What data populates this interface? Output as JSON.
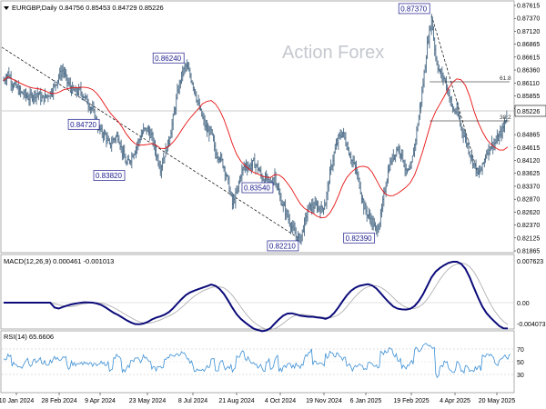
{
  "watermark": "Action Forex",
  "chart_data": [
    {
      "type": "line",
      "title": "EURGBP,Daily",
      "ohlc": "0.84756 0.85453 0.84729 0.85226",
      "style": "OHLC bars with moving average",
      "last_price": "0.85226",
      "colors": {
        "bars": "#4a6a86",
        "moving_average": "#e81010",
        "trendline": "#000000"
      },
      "x_dates": [
        "10 Jan 2024",
        "28 Feb 2024",
        "9 Apr 2024",
        "23 May 2024",
        "8 Jul 2024",
        "21 Aug 2024",
        "4 Oct 2024",
        "19 Nov 2024",
        "6 Jan 2025",
        "19 Feb 2025",
        "4 Apr 2025",
        "20 May 2025"
      ],
      "ylim": [
        0.8198,
        0.8766
      ],
      "y_ticks": [
        "0.87615",
        "0.87370",
        "0.87120",
        "0.86865",
        "0.86615",
        "0.86360",
        "0.86110",
        "0.85855",
        "0.85605",
        "0.85226",
        "0.84865",
        "0.84615",
        "0.84120",
        "0.83625",
        "0.83370",
        "0.82870",
        "0.82620",
        "0.82370",
        "0.82125",
        "0.81865"
      ],
      "annotations": [
        {
          "text": "0.82210",
          "value": 0.8221
        },
        {
          "text": "0.83820",
          "value": 0.8382
        },
        {
          "text": "0.86240",
          "value": 0.8624
        },
        {
          "text": "0.84720",
          "value": 0.8472
        },
        {
          "text": "0.82390",
          "value": 0.8239
        },
        {
          "text": "0.87370",
          "value": 0.8737
        },
        {
          "text": "0.83540",
          "value": 0.8354
        }
      ],
      "fibonacci": [
        {
          "text": "61.8"
        },
        {
          "text": "38.2"
        }
      ],
      "price_series": [
        0.8588,
        0.8605,
        0.8582,
        0.8572,
        0.856,
        0.8555,
        0.8548,
        0.8555,
        0.856,
        0.8545,
        0.8552,
        0.856,
        0.8575,
        0.8598,
        0.8612,
        0.8585,
        0.8568,
        0.856,
        0.8565,
        0.8552,
        0.8535,
        0.852,
        0.8488,
        0.847,
        0.8462,
        0.8438,
        0.8455,
        0.8462,
        0.8425,
        0.8395,
        0.841,
        0.843,
        0.8452,
        0.8474,
        0.8475,
        0.8457,
        0.842,
        0.8388,
        0.842,
        0.845,
        0.85,
        0.8558,
        0.86,
        0.8622,
        0.86,
        0.857,
        0.853,
        0.85,
        0.8472,
        0.847,
        0.842,
        0.8415,
        0.839,
        0.8355,
        0.8305,
        0.833,
        0.8375,
        0.8395,
        0.839,
        0.84,
        0.8388,
        0.8365,
        0.8362,
        0.8348,
        0.8372,
        0.8325,
        0.83,
        0.8278,
        0.8252,
        0.8232,
        0.8225,
        0.826,
        0.8298,
        0.83,
        0.83,
        0.8292,
        0.831,
        0.8375,
        0.842,
        0.8455,
        0.847,
        0.844,
        0.841,
        0.8387,
        0.835,
        0.83,
        0.828,
        0.8265,
        0.8242,
        0.8275,
        0.834,
        0.8392,
        0.8415,
        0.8435,
        0.842,
        0.8377,
        0.838,
        0.844,
        0.8505,
        0.858,
        0.867,
        0.873,
        0.864,
        0.8603,
        0.8593,
        0.856,
        0.852,
        0.8517,
        0.848,
        0.8455,
        0.8423,
        0.8398,
        0.8372,
        0.839,
        0.8425,
        0.844,
        0.8445,
        0.846,
        0.848,
        0.8522
      ]
    },
    {
      "type": "line",
      "title": "MACD(12,26,9) 0.000461 -0.001013",
      "y_ticks": [
        "0.007623",
        "0.00",
        "-0.004073"
      ],
      "ylim": [
        -0.0045,
        0.008
      ]
    },
    {
      "type": "line",
      "title": "RSI(14) 65.6606",
      "y_ticks": [
        "70",
        "50",
        "30"
      ],
      "ylim": [
        10,
        90
      ]
    }
  ]
}
